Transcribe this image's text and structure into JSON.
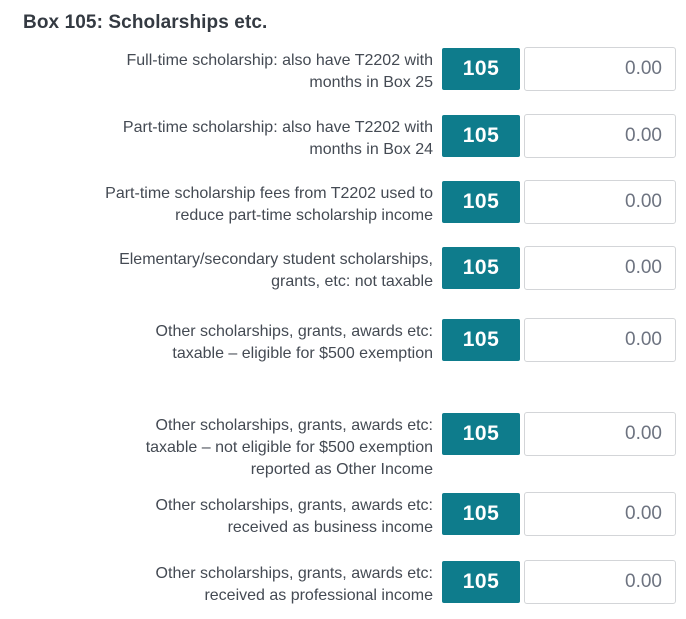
{
  "header": {
    "title": "Box 105: Scholarships etc."
  },
  "accent_color": "#0e7c8c",
  "rows": [
    {
      "label": "Full-time scholarship: also have T2202 with\nmonths in Box 25",
      "box": "105",
      "value": "0.00"
    },
    {
      "label": "Part-time scholarship: also have T2202 with\nmonths in Box 24",
      "box": "105",
      "value": "0.00"
    },
    {
      "label": "Part-time scholarship fees from T2202 used to\nreduce part-time scholarship income",
      "box": "105",
      "value": "0.00"
    },
    {
      "label": "Elementary/secondary student scholarships,\ngrants, etc: not taxable",
      "box": "105",
      "value": "0.00"
    },
    {
      "label": "Other scholarships, grants, awards etc:\ntaxable – eligible for $500 exemption",
      "box": "105",
      "value": "0.00"
    },
    {
      "label": "Other scholarships, grants, awards etc:\ntaxable – not eligible for $500 exemption\nreported as Other Income",
      "box": "105",
      "value": "0.00"
    },
    {
      "label": "Other scholarships, grants, awards etc:\nreceived as business income",
      "box": "105",
      "value": "0.00"
    },
    {
      "label": "Other scholarships, grants, awards etc:\nreceived as professional income",
      "box": "105",
      "value": "0.00"
    }
  ]
}
